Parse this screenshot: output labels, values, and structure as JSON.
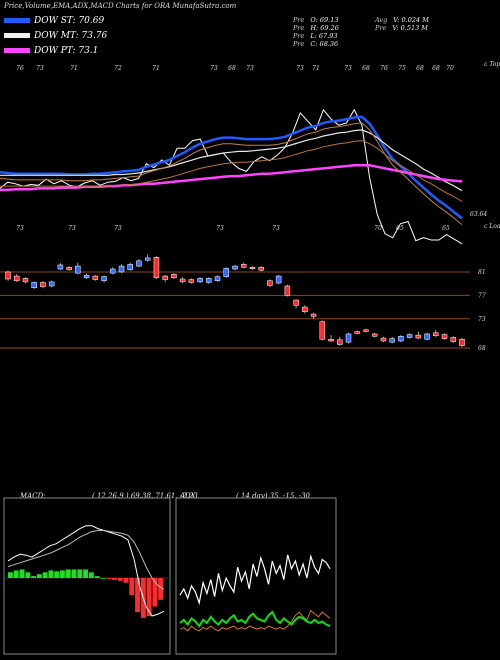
{
  "header": {
    "title": "Price,Volume,EMA,ADX,MACD Charts for ORA MunafaSutra.com"
  },
  "legend": [
    {
      "label": "DOW ST: 70.69",
      "color": "#1f5cff"
    },
    {
      "label": "DOW MT: 73.76",
      "color": "#f0f0f0"
    },
    {
      "label": "DOW PT: 73.1",
      "color": "#ff44ff"
    }
  ],
  "stats_left": [
    {
      "key": "Pre",
      "value": "O: 69.13"
    },
    {
      "key": "Pre",
      "value": "H: 69.26"
    },
    {
      "key": "Pre",
      "value": "L: 67.93"
    },
    {
      "key": "Pre",
      "value": "C: 68.36"
    }
  ],
  "stats_right": [
    {
      "key": "Avg",
      "value": "V: 0.024  M"
    },
    {
      "key": "Pre",
      "value": "V: 0.513  M"
    }
  ],
  "ema_panel": {
    "last_price_label": "63.64",
    "corner_label": "c Topa",
    "top_ticks": [
      "76",
      "73",
      "71",
      "72",
      "71",
      "73",
      "68",
      "73",
      "73",
      "71",
      "73",
      "68",
      "76",
      "75",
      "68",
      "68",
      "70"
    ],
    "bottom_ticks": [
      "73",
      "73",
      "73",
      "73",
      "73",
      "70",
      "65",
      "65"
    ]
  },
  "candle_panel": {
    "corner_label": "c Loans",
    "levels": [
      "81",
      "77",
      "73",
      "68"
    ]
  },
  "macd": {
    "header": "MACD:",
    "params": "( 12,26,9 ) 69.38,  71.61,  -2.23"
  },
  "adx": {
    "header": "ADX",
    "params": "( 14  day) 35,  -15,  -30"
  },
  "chart_data": [
    {
      "type": "line",
      "title": "EMA",
      "series": [
        {
          "name": "Price",
          "values": [
            75.6,
            76.4,
            76.2,
            75.9,
            76.1,
            76.0,
            76.8,
            76.2,
            76.6,
            76.0,
            75.8,
            76.3,
            76.6,
            76.0,
            76.4,
            76.5,
            77.0,
            76.6,
            76.9,
            78.8,
            78.3,
            79.3,
            78.6,
            80.8,
            80.8,
            81.8,
            82.0,
            79.8,
            80.0,
            80.2,
            79.0,
            78.2,
            77.8,
            79.1,
            79.7,
            79.2,
            79.9,
            80.9,
            82.8,
            85.4,
            84.3,
            83.2,
            85.8,
            84.6,
            83.8,
            84.1,
            85.8,
            83.8,
            77.0,
            72.2,
            69.7,
            69.2,
            71.0,
            71.3,
            68.8,
            69.2,
            68.9,
            68.9,
            69.6,
            69.0,
            68.4
          ]
        },
        {
          "name": "DOW ST",
          "values": [
            77.7,
            77.6,
            77.5,
            77.5,
            77.5,
            77.5,
            77.5,
            77.5,
            77.5,
            77.4,
            77.4,
            77.4,
            77.5,
            77.5,
            77.6,
            77.7,
            77.8,
            77.9,
            78.0,
            78.4,
            78.7,
            79.0,
            79.3,
            79.8,
            80.3,
            80.9,
            81.4,
            81.7,
            82.0,
            82.2,
            82.2,
            82.1,
            82.0,
            82.0,
            82.0,
            82.0,
            82.1,
            82.3,
            82.7,
            83.1,
            83.5,
            83.7,
            84.1,
            84.3,
            84.4,
            84.6,
            84.8,
            84.9,
            84.0,
            82.5,
            80.8,
            79.4,
            78.5,
            77.6,
            76.6,
            75.7,
            74.8,
            74.0,
            73.3,
            72.5,
            71.7
          ]
        },
        {
          "name": "DOW MT",
          "values": [
            77.3,
            77.3,
            77.3,
            77.3,
            77.3,
            77.3,
            77.3,
            77.3,
            77.3,
            77.3,
            77.3,
            77.3,
            77.3,
            77.3,
            77.3,
            77.4,
            77.4,
            77.5,
            77.6,
            77.8,
            78.0,
            78.2,
            78.4,
            78.7,
            79.0,
            79.3,
            79.6,
            79.8,
            80.0,
            80.2,
            80.3,
            80.4,
            80.4,
            80.5,
            80.6,
            80.7,
            80.8,
            81.0,
            81.3,
            81.6,
            81.9,
            82.1,
            82.4,
            82.6,
            82.8,
            82.9,
            83.1,
            83.2,
            82.8,
            82.2,
            81.4,
            80.6,
            80.0,
            79.4,
            78.8,
            78.1,
            77.6,
            77.0,
            76.4,
            75.9,
            75.3
          ]
        },
        {
          "name": "DOW PT",
          "values": [
            75.4,
            75.4,
            75.5,
            75.5,
            75.5,
            75.6,
            75.6,
            75.6,
            75.7,
            75.7,
            75.7,
            75.8,
            75.8,
            75.8,
            75.9,
            75.9,
            76.0,
            76.0,
            76.1,
            76.2,
            76.2,
            76.3,
            76.4,
            76.5,
            76.6,
            76.7,
            76.8,
            76.9,
            77.0,
            77.1,
            77.2,
            77.2,
            77.3,
            77.4,
            77.5,
            77.5,
            77.6,
            77.7,
            77.8,
            77.9,
            78.0,
            78.1,
            78.2,
            78.3,
            78.4,
            78.5,
            78.6,
            78.6,
            78.6,
            78.4,
            78.2,
            78.0,
            77.8,
            77.6,
            77.4,
            77.2,
            77.0,
            76.8,
            76.7,
            76.6,
            76.5
          ]
        }
      ]
    },
    {
      "type": "candlestick",
      "title": "Price",
      "levels": [
        81,
        77,
        73,
        68
      ],
      "candles": [
        {
          "o": 81.0,
          "c": 79.8,
          "h": 81.2,
          "l": 79.5
        },
        {
          "o": 80.3,
          "c": 79.5,
          "h": 80.6,
          "l": 79.3
        },
        {
          "o": 79.9,
          "c": 79.3,
          "h": 80.1,
          "l": 79.1
        },
        {
          "o": 78.3,
          "c": 79.2,
          "h": 79.4,
          "l": 78.1
        },
        {
          "o": 79.2,
          "c": 78.5,
          "h": 79.4,
          "l": 78.2
        },
        {
          "o": 78.6,
          "c": 79.3,
          "h": 79.5,
          "l": 78.4
        },
        {
          "o": 81.5,
          "c": 82.2,
          "h": 82.5,
          "l": 81.3
        },
        {
          "o": 81.8,
          "c": 81.4,
          "h": 82.0,
          "l": 81.2
        },
        {
          "o": 80.8,
          "c": 82.0,
          "h": 82.6,
          "l": 80.6
        },
        {
          "o": 80.0,
          "c": 80.4,
          "h": 80.7,
          "l": 79.8
        },
        {
          "o": 80.3,
          "c": 79.7,
          "h": 80.5,
          "l": 79.5
        },
        {
          "o": 79.5,
          "c": 80.2,
          "h": 80.4,
          "l": 79.2
        },
        {
          "o": 80.8,
          "c": 81.5,
          "h": 81.8,
          "l": 80.6
        },
        {
          "o": 81.0,
          "c": 82.0,
          "h": 82.3,
          "l": 80.8
        },
        {
          "o": 81.4,
          "c": 82.3,
          "h": 82.6,
          "l": 81.2
        },
        {
          "o": 82.0,
          "c": 82.9,
          "h": 83.2,
          "l": 81.8
        },
        {
          "o": 83.0,
          "c": 83.4,
          "h": 84.0,
          "l": 82.8
        },
        {
          "o": 83.5,
          "c": 80.0,
          "h": 83.7,
          "l": 79.8
        },
        {
          "o": 80.3,
          "c": 79.7,
          "h": 80.5,
          "l": 79.3
        },
        {
          "o": 80.6,
          "c": 80.0,
          "h": 80.8,
          "l": 79.8
        },
        {
          "o": 79.8,
          "c": 79.3,
          "h": 80.1,
          "l": 79.1
        },
        {
          "o": 79.7,
          "c": 79.2,
          "h": 79.9,
          "l": 79.0
        },
        {
          "o": 79.3,
          "c": 79.9,
          "h": 80.1,
          "l": 79.1
        },
        {
          "o": 79.2,
          "c": 79.9,
          "h": 80.1,
          "l": 79.0
        },
        {
          "o": 79.5,
          "c": 80.2,
          "h": 80.4,
          "l": 79.3
        },
        {
          "o": 80.2,
          "c": 81.6,
          "h": 81.8,
          "l": 80.0
        },
        {
          "o": 81.5,
          "c": 82.0,
          "h": 82.2,
          "l": 81.3
        },
        {
          "o": 82.3,
          "c": 81.8,
          "h": 82.6,
          "l": 81.6
        },
        {
          "o": 81.8,
          "c": 81.6,
          "h": 82.0,
          "l": 81.4
        },
        {
          "o": 81.8,
          "c": 81.3,
          "h": 82.0,
          "l": 81.1
        },
        {
          "o": 79.5,
          "c": 78.7,
          "h": 79.7,
          "l": 78.4
        },
        {
          "o": 79.1,
          "c": 80.3,
          "h": 80.5,
          "l": 78.9
        },
        {
          "o": 78.6,
          "c": 77.0,
          "h": 78.8,
          "l": 76.8
        },
        {
          "o": 76.2,
          "c": 75.3,
          "h": 76.3,
          "l": 74.8
        },
        {
          "o": 75.0,
          "c": 74.2,
          "h": 75.3,
          "l": 73.9
        },
        {
          "o": 73.8,
          "c": 73.4,
          "h": 74.0,
          "l": 73.0
        },
        {
          "o": 72.5,
          "c": 69.5,
          "h": 72.7,
          "l": 69.3
        },
        {
          "o": 69.5,
          "c": 69.2,
          "h": 70.2,
          "l": 69.0
        },
        {
          "o": 69.4,
          "c": 68.6,
          "h": 69.9,
          "l": 68.4
        },
        {
          "o": 69.0,
          "c": 70.4,
          "h": 70.6,
          "l": 68.8
        },
        {
          "o": 70.8,
          "c": 70.5,
          "h": 71.0,
          "l": 70.3
        },
        {
          "o": 71.1,
          "c": 70.9,
          "h": 71.3,
          "l": 70.7
        },
        {
          "o": 70.4,
          "c": 70.0,
          "h": 70.6,
          "l": 69.8
        },
        {
          "o": 69.7,
          "c": 69.2,
          "h": 69.9,
          "l": 69.0
        },
        {
          "o": 69.0,
          "c": 69.6,
          "h": 69.9,
          "l": 68.8
        },
        {
          "o": 69.2,
          "c": 70.0,
          "h": 70.2,
          "l": 69.0
        },
        {
          "o": 69.8,
          "c": 70.3,
          "h": 70.5,
          "l": 69.6
        },
        {
          "o": 70.2,
          "c": 69.7,
          "h": 70.8,
          "l": 69.5
        },
        {
          "o": 69.5,
          "c": 70.4,
          "h": 70.6,
          "l": 69.3
        },
        {
          "o": 70.6,
          "c": 70.1,
          "h": 71.1,
          "l": 69.9
        },
        {
          "o": 70.3,
          "c": 69.6,
          "h": 70.5,
          "l": 69.4
        },
        {
          "o": 69.8,
          "c": 69.1,
          "h": 70.0,
          "l": 68.9
        },
        {
          "o": 69.5,
          "c": 68.4,
          "h": 69.7,
          "l": 68.2
        }
      ]
    },
    {
      "type": "macd",
      "title": "MACD",
      "series": [
        {
          "name": "MACD",
          "values": [
            0.18,
            0.22,
            0.25,
            0.24,
            0.22,
            0.26,
            0.3,
            0.34,
            0.36,
            0.4,
            0.44,
            0.48,
            0.52,
            0.55,
            0.55,
            0.52,
            0.5,
            0.48,
            0.46,
            0.44,
            0.4,
            0.2,
            -0.1,
            -0.3,
            -0.4,
            -0.38,
            -0.35
          ]
        },
        {
          "name": "Signal",
          "values": [
            0.12,
            0.14,
            0.16,
            0.18,
            0.2,
            0.22,
            0.24,
            0.26,
            0.29,
            0.32,
            0.35,
            0.39,
            0.43,
            0.46,
            0.49,
            0.5,
            0.5,
            0.49,
            0.48,
            0.47,
            0.45,
            0.38,
            0.26,
            0.12,
            0.0,
            -0.08,
            -0.12
          ]
        }
      ],
      "histogram": [
        0.06,
        0.08,
        0.09,
        0.06,
        0.02,
        0.04,
        0.06,
        0.08,
        0.07,
        0.08,
        0.09,
        0.09,
        0.09,
        0.09,
        0.06,
        0.02,
        0.0,
        -0.01,
        -0.02,
        -0.03,
        -0.05,
        -0.18,
        -0.36,
        -0.42,
        -0.4,
        -0.3,
        -0.23
      ]
    },
    {
      "type": "line",
      "title": "ADX",
      "series": [
        {
          "name": "ADX",
          "values": [
            38,
            42,
            36,
            44,
            40,
            33,
            46,
            39,
            48,
            37,
            52,
            41,
            49,
            44,
            40,
            56,
            47,
            53,
            42,
            58,
            50,
            62,
            55,
            45,
            60,
            52,
            57,
            48,
            64,
            55,
            60,
            51,
            58,
            49,
            63,
            56,
            52,
            61,
            59,
            55
          ]
        },
        {
          "name": "+DI",
          "values": [
            20,
            22,
            19,
            23,
            21,
            18,
            22,
            20,
            24,
            21,
            19,
            22,
            20,
            23,
            25,
            21,
            22,
            20,
            24,
            26,
            23,
            22,
            21,
            25,
            27,
            22,
            20,
            23,
            21,
            19,
            22,
            24,
            23,
            21,
            20,
            22,
            20,
            21,
            19,
            18
          ]
        },
        {
          "name": "-DI",
          "values": [
            16,
            17,
            15,
            18,
            16,
            15,
            17,
            16,
            18,
            16,
            15,
            17,
            16,
            17,
            18,
            16,
            17,
            16,
            18,
            17,
            16,
            17,
            16,
            18,
            17,
            16,
            17,
            16,
            18,
            21,
            25,
            27,
            24,
            22,
            28,
            26,
            24,
            27,
            25,
            23
          ]
        }
      ]
    }
  ]
}
